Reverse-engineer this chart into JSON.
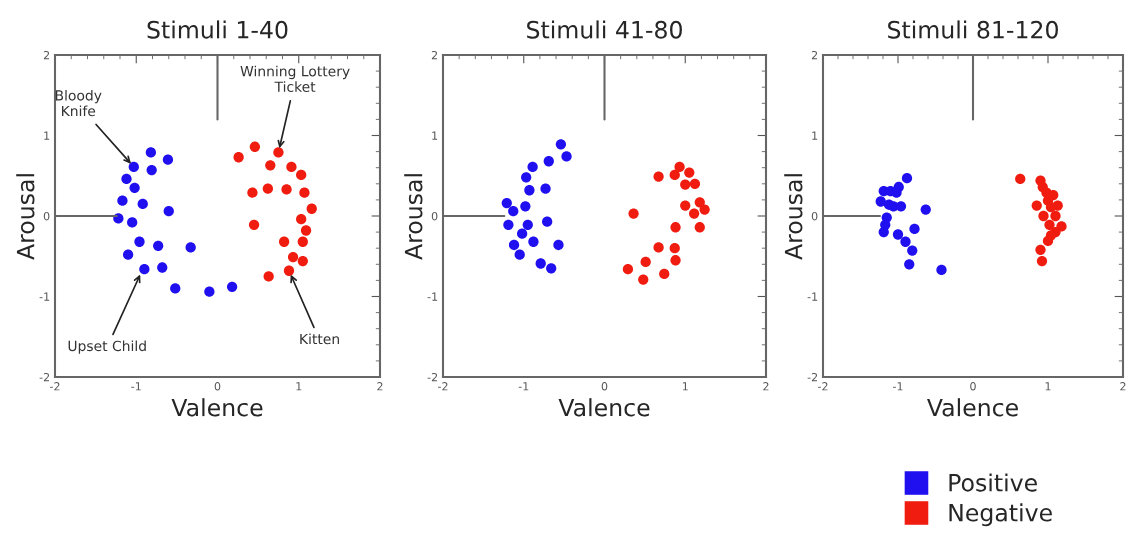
{
  "chart_data": [
    {
      "type": "scatter",
      "title": "Stimuli 1-40",
      "xlabel": "Valence",
      "ylabel": "Arousal",
      "xlim": [
        -2,
        2
      ],
      "ylim": [
        -2,
        2
      ],
      "xticks": [
        -2,
        -1,
        0,
        1,
        2
      ],
      "yticks": [
        -2,
        -1,
        0,
        1,
        2
      ],
      "grid": false,
      "marker": "circle",
      "annotations": [
        {
          "text": "Bloody\nKnife",
          "x": -1.03,
          "y": 0.61
        },
        {
          "text": "Winning Lottery\nTicket",
          "x": 0.75,
          "y": 0.79
        },
        {
          "text": "Upset Child",
          "x": -0.93,
          "y": -0.68
        },
        {
          "text": "Kitten",
          "x": 0.88,
          "y": -0.68
        }
      ],
      "series": [
        {
          "color": "#2010f0",
          "x": [
            -1.03,
            -0.82,
            -0.61,
            -0.81,
            -1.12,
            -1.02,
            -1.17,
            -0.92,
            -0.6,
            -1.22,
            -1.05,
            -0.96,
            -0.73,
            -0.33,
            -1.1,
            -0.9,
            -0.68,
            -0.52,
            -0.1,
            0.18
          ],
          "values": [
            0.61,
            0.79,
            0.7,
            0.57,
            0.46,
            0.35,
            0.19,
            0.15,
            0.06,
            -0.03,
            -0.08,
            -0.32,
            -0.37,
            -0.39,
            -0.48,
            -0.66,
            -0.64,
            -0.9,
            -0.94,
            -0.88
          ]
        },
        {
          "color": "#f01c10",
          "x": [
            0.26,
            0.46,
            0.75,
            0.65,
            0.91,
            1.03,
            0.43,
            0.62,
            0.85,
            1.07,
            1.16,
            1.03,
            1.09,
            0.45,
            0.82,
            1.05,
            0.93,
            1.05,
            0.88,
            0.63
          ],
          "values": [
            0.73,
            0.86,
            0.79,
            0.63,
            0.61,
            0.51,
            0.29,
            0.34,
            0.33,
            0.29,
            0.09,
            -0.04,
            -0.18,
            -0.11,
            -0.32,
            -0.32,
            -0.51,
            -0.56,
            -0.68,
            -0.75
          ]
        }
      ]
    },
    {
      "type": "scatter",
      "title": "Stimuli 41-80",
      "xlabel": "Valence",
      "ylabel": "Arousal",
      "xlim": [
        -2,
        2
      ],
      "ylim": [
        -2,
        2
      ],
      "xticks": [
        -2,
        -1,
        0,
        1,
        2
      ],
      "yticks": [
        -2,
        -1,
        0,
        1,
        2
      ],
      "grid": false,
      "marker": "circle",
      "series": [
        {
          "color": "#2010f0",
          "x": [
            -0.54,
            -0.47,
            -0.69,
            -0.89,
            -0.97,
            -0.93,
            -0.73,
            -1.21,
            -1.13,
            -0.98,
            -1.19,
            -0.95,
            -1.02,
            -0.71,
            -0.88,
            -1.12,
            -0.57,
            -1.05,
            -0.79,
            -0.66
          ],
          "values": [
            0.89,
            0.74,
            0.68,
            0.61,
            0.48,
            0.32,
            0.34,
            0.16,
            0.06,
            0.12,
            -0.11,
            -0.11,
            -0.22,
            -0.07,
            -0.32,
            -0.36,
            -0.36,
            -0.48,
            -0.59,
            -0.65
          ]
        },
        {
          "color": "#f01c10",
          "x": [
            0.93,
            1.05,
            0.87,
            0.67,
            1.0,
            1.12,
            1.18,
            1.24,
            1.0,
            1.11,
            0.36,
            1.18,
            0.88,
            0.67,
            0.87,
            0.88,
            0.51,
            0.29,
            0.74,
            0.48
          ],
          "values": [
            0.61,
            0.54,
            0.51,
            0.49,
            0.39,
            0.4,
            0.17,
            0.08,
            0.13,
            0.03,
            0.03,
            -0.14,
            -0.14,
            -0.39,
            -0.4,
            -0.55,
            -0.57,
            -0.66,
            -0.72,
            -0.79
          ]
        }
      ]
    },
    {
      "type": "scatter",
      "title": "Stimuli 81-120",
      "xlabel": "Valence",
      "ylabel": "Arousal",
      "xlim": [
        -2,
        2
      ],
      "ylim": [
        -2,
        2
      ],
      "xticks": [
        -2,
        -1,
        0,
        1,
        2
      ],
      "yticks": [
        -2,
        -1,
        0,
        1,
        2
      ],
      "grid": false,
      "marker": "circle",
      "legend": "bottom",
      "series": [
        {
          "name": "Positive",
          "color": "#2010f0",
          "x": [
            -0.88,
            -0.99,
            -1.19,
            -1.1,
            -1.02,
            -1.23,
            -1.12,
            -1.06,
            -0.96,
            -0.63,
            -1.15,
            -1.17,
            -1.19,
            -0.78,
            -1.0,
            -0.9,
            -0.81,
            -0.85,
            -0.42
          ],
          "values": [
            0.47,
            0.36,
            0.31,
            0.31,
            0.29,
            0.18,
            0.14,
            0.12,
            0.12,
            0.08,
            -0.02,
            -0.11,
            -0.2,
            -0.16,
            -0.23,
            -0.32,
            -0.43,
            -0.6,
            -0.67
          ]
        },
        {
          "name": "Negative",
          "color": "#f01c10",
          "x": [
            0.63,
            0.9,
            0.93,
            0.98,
            1.07,
            1.0,
            0.85,
            1.13,
            1.04,
            0.94,
            1.1,
            1.02,
            1.18,
            1.1,
            1.04,
            1.0,
            0.9,
            0.92
          ],
          "values": [
            0.46,
            0.44,
            0.36,
            0.29,
            0.26,
            0.19,
            0.13,
            0.13,
            0.11,
            0.0,
            0.0,
            -0.11,
            -0.13,
            -0.2,
            -0.24,
            -0.31,
            -0.42,
            -0.56
          ]
        }
      ]
    }
  ]
}
